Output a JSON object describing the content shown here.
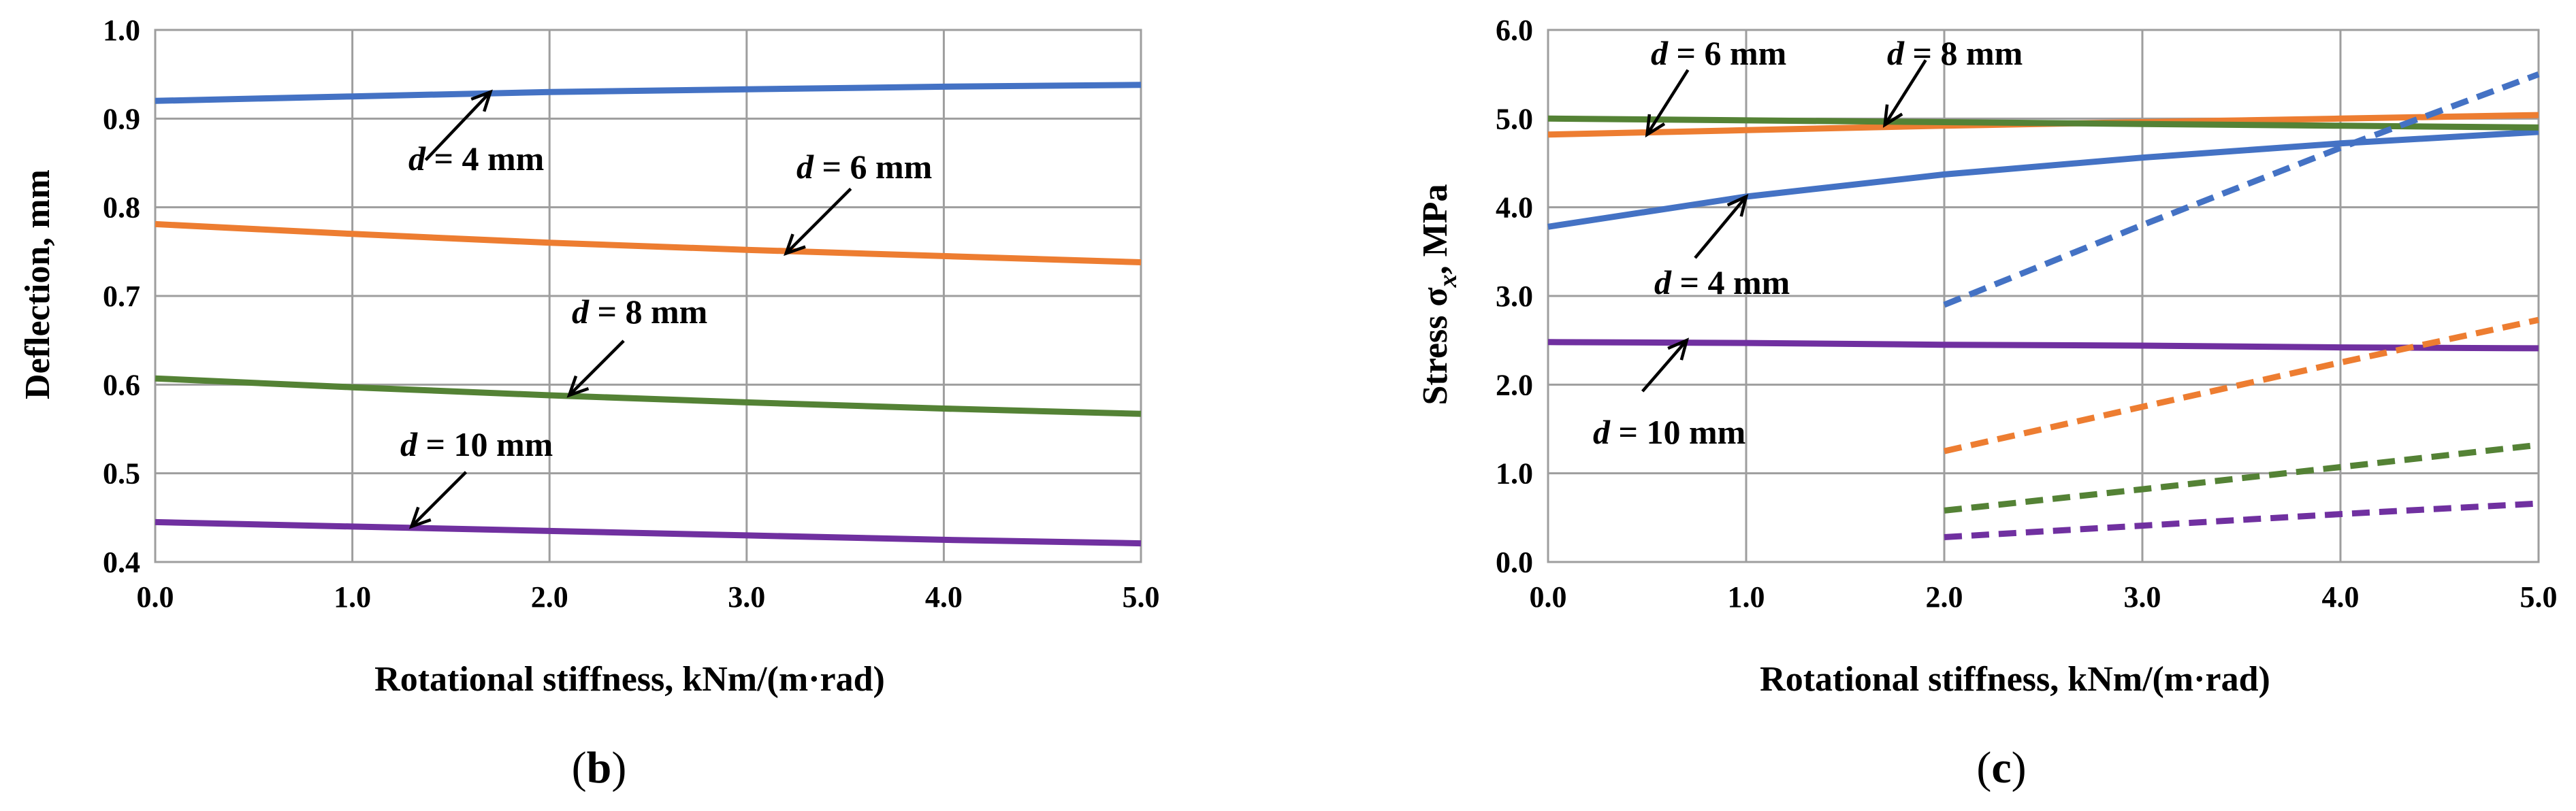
{
  "colors": {
    "d4": "#4472C4",
    "d6": "#ED7D31",
    "d8": "#548235",
    "d10": "#7030A0"
  },
  "chart_data": [
    {
      "type": "line",
      "panel": "b",
      "xlabel": "Rotational stiffness, kNm/(m·rad)",
      "ylabel": "Deflection, mm",
      "xlim": [
        0,
        5
      ],
      "ylim": [
        0.4,
        1.0
      ],
      "xticks": [
        "0.0",
        "1.0",
        "2.0",
        "3.0",
        "4.0",
        "5.0"
      ],
      "yticks": [
        "0.4",
        "0.5",
        "0.6",
        "0.7",
        "0.8",
        "0.9",
        "1.0"
      ],
      "grid": true,
      "series": [
        {
          "name": "d = 4 mm",
          "color_key": "d4",
          "dashed": false,
          "x": [
            0,
            1,
            2,
            3,
            4,
            5
          ],
          "y": [
            0.92,
            0.925,
            0.93,
            0.933,
            0.936,
            0.938
          ]
        },
        {
          "name": "d = 6 mm",
          "color_key": "d6",
          "dashed": false,
          "x": [
            0,
            1,
            2,
            3,
            4,
            5
          ],
          "y": [
            0.781,
            0.77,
            0.76,
            0.752,
            0.745,
            0.738
          ]
        },
        {
          "name": "d = 8 mm",
          "color_key": "d8",
          "dashed": false,
          "x": [
            0,
            1,
            2,
            3,
            4,
            5
          ],
          "y": [
            0.607,
            0.597,
            0.588,
            0.58,
            0.573,
            0.567
          ]
        },
        {
          "name": "d = 10 mm",
          "color_key": "d10",
          "dashed": false,
          "x": [
            0,
            1,
            2,
            3,
            4,
            5
          ],
          "y": [
            0.445,
            0.44,
            0.435,
            0.43,
            0.425,
            0.421
          ]
        }
      ],
      "annotations": [
        {
          "d": "d",
          "rest": " = 4 mm",
          "x": 1.7,
          "y": 0.93
        },
        {
          "d": "d",
          "rest": " = 6 mm",
          "x": 3.2,
          "y": 0.748
        },
        {
          "d": "d",
          "rest": " = 8 mm",
          "x": 2.1,
          "y": 0.588
        },
        {
          "d": "d",
          "rest": " = 10 mm",
          "x": 1.3,
          "y": 0.44
        }
      ]
    },
    {
      "type": "line",
      "panel": "c",
      "xlabel": "Rotational stiffness, kNm/(m·rad)",
      "ylabel": "Stress σx, MPa",
      "ylabel_main": "Stress σ",
      "ylabel_sub": "x",
      "ylabel_end": ", MPa",
      "xlim": [
        0,
        5
      ],
      "ylim": [
        0,
        6
      ],
      "xticks": [
        "0.0",
        "1.0",
        "2.0",
        "3.0",
        "4.0",
        "5.0"
      ],
      "yticks": [
        "0.0",
        "1.0",
        "2.0",
        "3.0",
        "4.0",
        "5.0",
        "6.0"
      ],
      "grid": true,
      "series": [
        {
          "name": "d = 4 mm",
          "color_key": "d4",
          "dashed": false,
          "x": [
            0,
            1,
            2,
            3,
            4,
            5
          ],
          "y": [
            3.78,
            4.12,
            4.37,
            4.56,
            4.72,
            4.85
          ]
        },
        {
          "name": "d = 6 mm",
          "color_key": "d6",
          "dashed": false,
          "x": [
            0,
            1,
            2,
            3,
            4,
            5
          ],
          "y": [
            4.82,
            4.87,
            4.92,
            4.96,
            5.0,
            5.04
          ]
        },
        {
          "name": "d = 8 mm",
          "color_key": "d8",
          "dashed": false,
          "x": [
            0,
            1,
            2,
            3,
            4,
            5
          ],
          "y": [
            5.0,
            4.98,
            4.96,
            4.94,
            4.92,
            4.9
          ]
        },
        {
          "name": "d = 10 mm",
          "color_key": "d10",
          "dashed": false,
          "x": [
            0,
            1,
            2,
            3,
            4,
            5
          ],
          "y": [
            2.48,
            2.47,
            2.45,
            2.44,
            2.42,
            2.41
          ]
        },
        {
          "name": "d = 4 mm (dashed)",
          "color_key": "d4",
          "dashed": true,
          "x": [
            2,
            3,
            4,
            5
          ],
          "y": [
            2.9,
            3.8,
            4.67,
            5.5
          ]
        },
        {
          "name": "d = 6 mm (dashed)",
          "color_key": "d6",
          "dashed": true,
          "x": [
            2,
            3,
            4,
            5
          ],
          "y": [
            1.25,
            1.75,
            2.25,
            2.73
          ]
        },
        {
          "name": "d = 8 mm (dashed)",
          "color_key": "d8",
          "dashed": true,
          "x": [
            2,
            3,
            4,
            5
          ],
          "y": [
            0.58,
            0.82,
            1.07,
            1.32
          ]
        },
        {
          "name": "d = 10 mm (dashed)",
          "color_key": "d10",
          "dashed": true,
          "x": [
            2,
            3,
            4,
            5
          ],
          "y": [
            0.28,
            0.41,
            0.54,
            0.66
          ]
        }
      ],
      "annotations": [
        {
          "d": "d",
          "rest": " = 6 mm",
          "x": 0.5,
          "y": 4.82
        },
        {
          "d": "d",
          "rest": " = 8 mm",
          "x": 1.7,
          "y": 4.93
        },
        {
          "d": "d",
          "rest": " = 4 mm",
          "x": 1.0,
          "y": 4.12
        },
        {
          "d": "d",
          "rest": " = 10 mm",
          "x": 0.7,
          "y": 2.5
        }
      ]
    }
  ]
}
